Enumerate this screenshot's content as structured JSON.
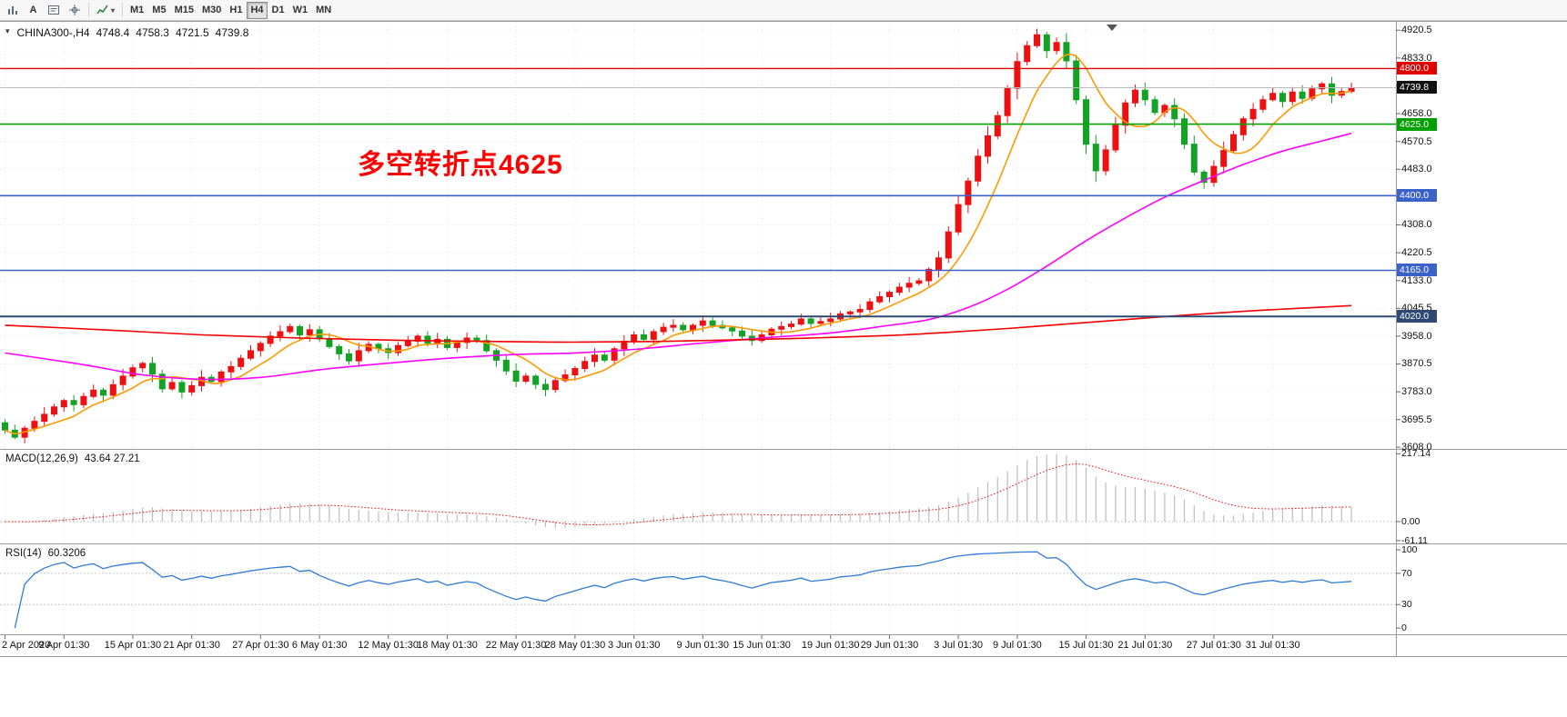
{
  "toolbar": {
    "text_tool_label": "A",
    "timeframes": [
      "M1",
      "M5",
      "M15",
      "M30",
      "H1",
      "H4",
      "D1",
      "W1",
      "MN"
    ],
    "active_timeframe": "H4"
  },
  "chart": {
    "header": {
      "title": "CHINA300-,H4",
      "open": "4748.4",
      "high": "4758.3",
      "low": "4721.5",
      "close": "4739.8"
    },
    "annotation": {
      "text": "多空转折点4625",
      "color": "#ff0000"
    }
  },
  "macd_header": {
    "label": "MACD(12,26,9)",
    "values": "43.64 27.21"
  },
  "rsi_header": {
    "label": "RSI(14)",
    "value": "60.3206"
  },
  "chart_data": {
    "type": "candlestick",
    "symbol": "CHINA300-",
    "timeframe": "H4",
    "price_axis": {
      "min": 3603,
      "max": 4947,
      "ticks": [
        4920.5,
        4833.0,
        4745.5,
        4658.0,
        4570.5,
        4483.0,
        4395.5,
        4308.0,
        4220.5,
        4133.0,
        4045.5,
        3958.0,
        3870.5,
        3783.0,
        3695.5,
        3608.0
      ]
    },
    "first_open": 3685,
    "closes": [
      3662,
      3640,
      3668,
      3690,
      3712,
      3735,
      3755,
      3742,
      3768,
      3788,
      3772,
      3805,
      3832,
      3858,
      3872,
      3838,
      3792,
      3812,
      3782,
      3802,
      3828,
      3815,
      3845,
      3862,
      3888,
      3912,
      3935,
      3958,
      3972,
      3988,
      3962,
      3978,
      3950,
      3925,
      3902,
      3880,
      3912,
      3932,
      3918,
      3906,
      3928,
      3942,
      3958,
      3936,
      3948,
      3922,
      3938,
      3952,
      3944,
      3912,
      3882,
      3848,
      3816,
      3832,
      3806,
      3790,
      3818,
      3836,
      3856,
      3878,
      3898,
      3882,
      3918,
      3942,
      3962,
      3948,
      3972,
      3986,
      3992,
      3978,
      3992,
      4006,
      3992,
      3984,
      3974,
      3958,
      3944,
      3962,
      3980,
      3988,
      3996,
      4012,
      3998,
      4004,
      4012,
      4028,
      4034,
      4042,
      4066,
      4082,
      4096,
      4112,
      4124,
      4132,
      4168,
      4204,
      4286,
      4372,
      4446,
      4524,
      4588,
      4652,
      4738,
      4822,
      4872,
      4906,
      4856,
      4882,
      4824,
      4702,
      4562,
      4478,
      4544,
      4622,
      4692,
      4732,
      4702,
      4662,
      4684,
      4642,
      4562,
      4474,
      4442,
      4492,
      4542,
      4592,
      4642,
      4672,
      4702,
      4722,
      4696,
      4726,
      4706,
      4736,
      4752,
      4716,
      4728,
      4739.8
    ],
    "wick_pattern": [
      9,
      14,
      6,
      12,
      18,
      8,
      5,
      15
    ],
    "colors": {
      "up": "#ee1111",
      "down": "#12a324",
      "grid": "#ececec",
      "vgrid": "#e3e3e3",
      "axis_text": "#111111"
    },
    "horizontal_lines": [
      {
        "price": 4800.0,
        "label": "4800.0",
        "color": "#e00000",
        "width": 1.4
      },
      {
        "price": 4739.8,
        "label": "4739.8",
        "color": "#bcbcbc",
        "width": 1,
        "badge": "#111111",
        "current": true
      },
      {
        "price": 4625.0,
        "label": "4625.0",
        "color": "#00a000",
        "width": 1.6
      },
      {
        "price": 4400.0,
        "label": "4400.0",
        "color": "#3a62c8",
        "width": 1.6
      },
      {
        "price": 4165.0,
        "label": "4165.0",
        "color": "#3a62c8",
        "width": 1.6
      },
      {
        "price": 4020.0,
        "label": "4020.0",
        "color": "#2e4a74",
        "width": 2
      }
    ],
    "moving_averages": [
      {
        "name": "ma-fast",
        "color": "#ff9900",
        "mode": "sma",
        "period": 7
      },
      {
        "name": "ma-medium",
        "color": "#ff00ff",
        "mode": "points",
        "points": [
          [
            0,
            3905
          ],
          [
            8,
            3868
          ],
          [
            14,
            3836
          ],
          [
            20,
            3822
          ],
          [
            26,
            3828
          ],
          [
            32,
            3852
          ],
          [
            38,
            3870
          ],
          [
            45,
            3888
          ],
          [
            52,
            3900
          ],
          [
            58,
            3905
          ],
          [
            64,
            3916
          ],
          [
            71,
            3936
          ],
          [
            77,
            3952
          ],
          [
            84,
            3968
          ],
          [
            90,
            3992
          ],
          [
            94,
            4010
          ],
          [
            98,
            4048
          ],
          [
            102,
            4105
          ],
          [
            106,
            4178
          ],
          [
            110,
            4258
          ],
          [
            114,
            4330
          ],
          [
            118,
            4395
          ],
          [
            122,
            4448
          ],
          [
            126,
            4498
          ],
          [
            130,
            4540
          ],
          [
            134,
            4572
          ],
          [
            137,
            4596
          ]
        ]
      },
      {
        "name": "ma-slow",
        "color": "#f00000",
        "mode": "points",
        "points": [
          [
            0,
            3992
          ],
          [
            10,
            3978
          ],
          [
            20,
            3962
          ],
          [
            30,
            3952
          ],
          [
            40,
            3945
          ],
          [
            50,
            3941
          ],
          [
            58,
            3939
          ],
          [
            66,
            3941
          ],
          [
            74,
            3946
          ],
          [
            82,
            3952
          ],
          [
            90,
            3960
          ],
          [
            96,
            3970
          ],
          [
            102,
            3982
          ],
          [
            108,
            3996
          ],
          [
            114,
            4010
          ],
          [
            120,
            4024
          ],
          [
            126,
            4036
          ],
          [
            132,
            4046
          ],
          [
            137,
            4054
          ]
        ]
      }
    ],
    "time_labels": [
      {
        "text": "2 Apr 2020",
        "index": 0
      },
      {
        "text": "9 Apr 01:30",
        "index": 6
      },
      {
        "text": "15 Apr 01:30",
        "index": 13
      },
      {
        "text": "21 Apr 01:30",
        "index": 19
      },
      {
        "text": "27 Apr 01:30",
        "index": 26
      },
      {
        "text": "6 May 01:30",
        "index": 32
      },
      {
        "text": "12 May 01:30",
        "index": 39
      },
      {
        "text": "18 May 01:30",
        "index": 45
      },
      {
        "text": "22 May 01:30",
        "index": 52
      },
      {
        "text": "28 May 01:30",
        "index": 58
      },
      {
        "text": "3 Jun 01:30",
        "index": 64
      },
      {
        "text": "9 Jun 01:30",
        "index": 71
      },
      {
        "text": "15 Jun 01:30",
        "index": 77
      },
      {
        "text": "19 Jun 01:30",
        "index": 84
      },
      {
        "text": "29 Jun 01:30",
        "index": 90
      },
      {
        "text": "3 Jul 01:30",
        "index": 97
      },
      {
        "text": "9 Jul 01:30",
        "index": 103
      },
      {
        "text": "15 Jul 01:30",
        "index": 110
      },
      {
        "text": "21 Jul 01:30",
        "index": 116
      },
      {
        "text": "27 Jul 01:30",
        "index": 123
      },
      {
        "text": "31 Jul 01:30",
        "index": 129
      }
    ],
    "macd": {
      "fast": 12,
      "slow": 26,
      "signal_period": 9,
      "hist_color": "#bdbdbd",
      "signal_color": "#ff0000",
      "axis_labels": [
        {
          "text": "217.14",
          "value": 217.14
        },
        {
          "text": "0.00",
          "value": 0
        },
        {
          "text": "-61.11",
          "value": -61.11
        }
      ]
    },
    "rsi": {
      "period": 14,
      "levels": [
        70,
        30
      ],
      "color": "#2e7bd6",
      "axis_labels": [
        {
          "text": "100",
          "value": 100
        },
        {
          "text": "70",
          "value": 70
        },
        {
          "text": "30",
          "value": 30
        },
        {
          "text": "0",
          "value": 0
        }
      ]
    }
  }
}
